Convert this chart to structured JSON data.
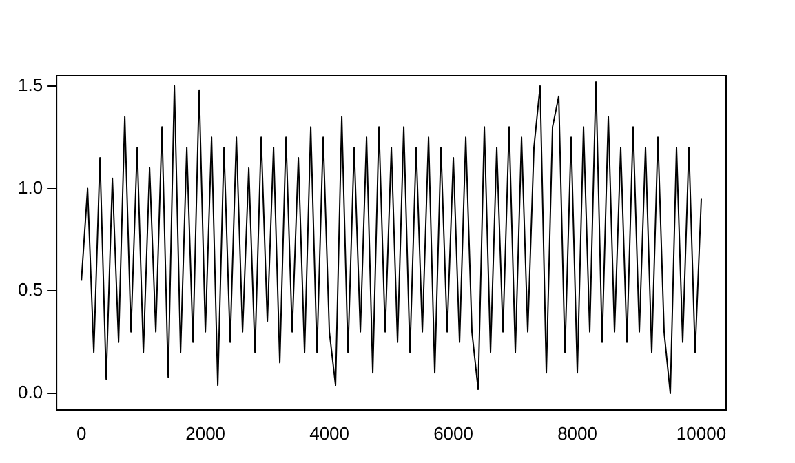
{
  "chart_data": {
    "type": "line",
    "color": "#000000",
    "x": [
      0,
      100,
      200,
      300,
      400,
      500,
      600,
      700,
      800,
      900,
      1000,
      1100,
      1200,
      1300,
      1400,
      1500,
      1600,
      1700,
      1800,
      1900,
      2000,
      2100,
      2200,
      2300,
      2400,
      2500,
      2600,
      2700,
      2800,
      2900,
      3000,
      3100,
      3200,
      3300,
      3400,
      3500,
      3600,
      3700,
      3800,
      3900,
      4000,
      4100,
      4200,
      4300,
      4400,
      4500,
      4600,
      4700,
      4800,
      4900,
      5000,
      5100,
      5200,
      5300,
      5400,
      5500,
      5600,
      5700,
      5800,
      5900,
      6000,
      6100,
      6200,
      6300,
      6400,
      6500,
      6600,
      6700,
      6800,
      6900,
      7000,
      7100,
      7200,
      7300,
      7400,
      7500,
      7600,
      7700,
      7800,
      7900,
      8000,
      8100,
      8200,
      8300,
      8400,
      8500,
      8600,
      8700,
      8800,
      8900,
      9000,
      9100,
      9200,
      9300,
      9400,
      9500,
      9600,
      9700,
      9800,
      9900,
      10000
    ],
    "values": [
      0.55,
      1.0,
      0.2,
      1.15,
      0.07,
      1.05,
      0.25,
      1.35,
      0.3,
      1.2,
      0.2,
      1.1,
      0.3,
      1.3,
      0.08,
      1.5,
      0.2,
      1.2,
      0.25,
      1.48,
      0.3,
      1.25,
      0.04,
      1.2,
      0.25,
      1.25,
      0.3,
      1.1,
      0.2,
      1.25,
      0.35,
      1.2,
      0.15,
      1.25,
      0.3,
      1.15,
      0.2,
      1.3,
      0.2,
      1.25,
      0.3,
      0.04,
      1.35,
      0.2,
      1.2,
      0.3,
      1.25,
      0.1,
      1.3,
      0.3,
      1.2,
      0.25,
      1.3,
      0.2,
      1.2,
      0.3,
      1.25,
      0.1,
      1.2,
      0.3,
      1.15,
      0.25,
      1.25,
      0.3,
      0.02,
      1.3,
      0.2,
      1.2,
      0.3,
      1.3,
      0.2,
      1.25,
      0.3,
      1.2,
      1.5,
      0.1,
      1.3,
      1.45,
      0.2,
      1.25,
      0.1,
      1.3,
      0.3,
      1.52,
      0.25,
      1.35,
      0.3,
      1.2,
      0.25,
      1.3,
      0.3,
      1.2,
      0.2,
      1.25,
      0.3,
      0.0,
      1.2,
      0.25,
      1.2,
      0.2,
      0.95
    ],
    "xlim": [
      -400,
      10400
    ],
    "ylim": [
      -0.08,
      1.55
    ],
    "xticks": [
      0,
      2000,
      4000,
      6000,
      8000,
      10000
    ],
    "yticks": [
      {
        "value": 0,
        "label": "0.0"
      },
      {
        "value": 0.5,
        "label": "0.5"
      },
      {
        "value": 1,
        "label": "1.0"
      },
      {
        "value": 1.5,
        "label": "1.5"
      }
    ]
  }
}
